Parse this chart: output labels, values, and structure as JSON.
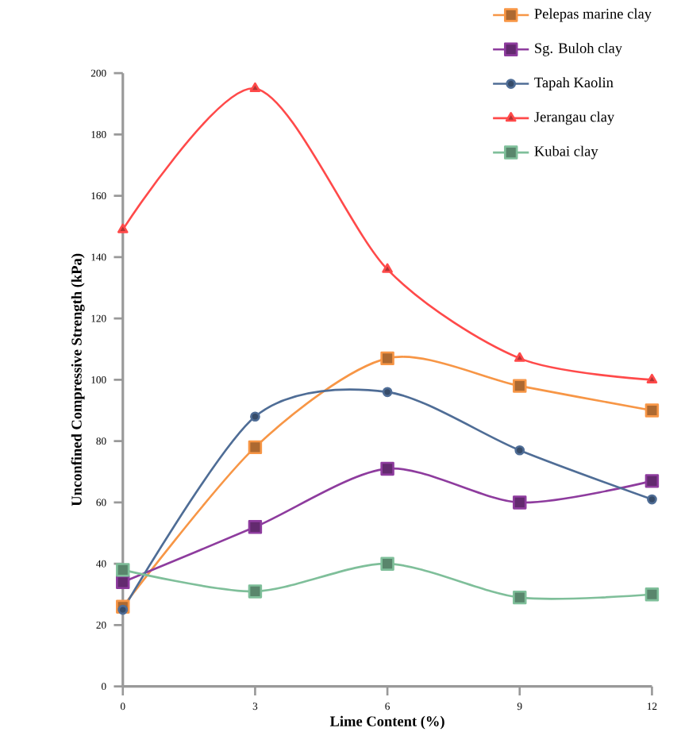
{
  "chart_data": {
    "type": "line",
    "xlabel": "Lime Content (%)",
    "ylabel": "Unconfined Compressive Strength (kPa)",
    "x": [
      0,
      3,
      6,
      9,
      12
    ],
    "xlim": [
      0,
      12
    ],
    "xticks": [
      0,
      3,
      6,
      9,
      12
    ],
    "ylim": [
      0,
      200
    ],
    "yticks": [
      0,
      20,
      40,
      60,
      80,
      100,
      120,
      140,
      160,
      180,
      200
    ],
    "grid": false,
    "legend": "top right",
    "line_style": "solid",
    "series": [
      {
        "name": "Pelepas marine clay",
        "color": "#f79646",
        "values": [
          26,
          78,
          107,
          98,
          90
        ],
        "marker": "square"
      },
      {
        "name": "Sg. Buloh clay",
        "color": "#8e3c9e",
        "values": [
          34,
          52,
          71,
          60,
          67
        ],
        "marker": "square"
      },
      {
        "name": "Tapah Kaolin",
        "color": "#4f6d96",
        "values": [
          25,
          88,
          96,
          77,
          61
        ],
        "marker": "circle"
      },
      {
        "name": "Jerangau clay",
        "color": "#ff4a4a",
        "values": [
          149,
          195,
          136,
          107,
          100
        ],
        "marker": "triangle"
      },
      {
        "name": "Kubai clay",
        "color": "#7fbf9a",
        "values": [
          38,
          31,
          40,
          29,
          30
        ],
        "marker": "square"
      }
    ]
  }
}
